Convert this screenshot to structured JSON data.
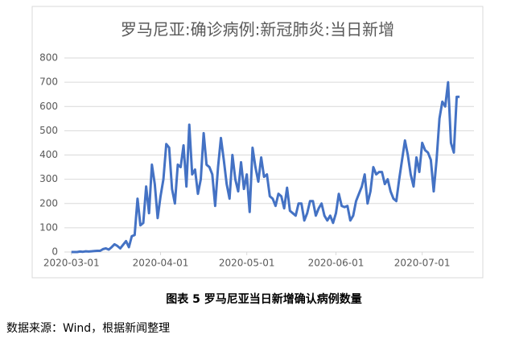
{
  "chart_data": {
    "type": "line",
    "title": "罗马尼亚:确诊病例:新冠肺炎:当日新增",
    "caption": "图表 5 罗马尼亚当日新增确认病例数量",
    "source": "数据来源：Wind，根据新闻整理",
    "x": [
      "2020-03-01",
      "2020-03-02",
      "2020-03-03",
      "2020-03-04",
      "2020-03-05",
      "2020-03-06",
      "2020-03-07",
      "2020-03-08",
      "2020-03-09",
      "2020-03-10",
      "2020-03-11",
      "2020-03-12",
      "2020-03-13",
      "2020-03-14",
      "2020-03-15",
      "2020-03-16",
      "2020-03-17",
      "2020-03-18",
      "2020-03-19",
      "2020-03-20",
      "2020-03-21",
      "2020-03-22",
      "2020-03-23",
      "2020-03-24",
      "2020-03-25",
      "2020-03-26",
      "2020-03-27",
      "2020-03-28",
      "2020-03-29",
      "2020-03-30",
      "2020-03-31",
      "2020-04-01",
      "2020-04-02",
      "2020-04-03",
      "2020-04-04",
      "2020-04-05",
      "2020-04-06",
      "2020-04-07",
      "2020-04-08",
      "2020-04-09",
      "2020-04-10",
      "2020-04-11",
      "2020-04-12",
      "2020-04-13",
      "2020-04-14",
      "2020-04-15",
      "2020-04-16",
      "2020-04-17",
      "2020-04-18",
      "2020-04-19",
      "2020-04-20",
      "2020-04-21",
      "2020-04-22",
      "2020-04-23",
      "2020-04-24",
      "2020-04-25",
      "2020-04-26",
      "2020-04-27",
      "2020-04-28",
      "2020-04-29",
      "2020-04-30",
      "2020-05-01",
      "2020-05-02",
      "2020-05-03",
      "2020-05-04",
      "2020-05-05",
      "2020-05-06",
      "2020-05-07",
      "2020-05-08",
      "2020-05-09",
      "2020-05-10",
      "2020-05-11",
      "2020-05-12",
      "2020-05-13",
      "2020-05-14",
      "2020-05-15",
      "2020-05-16",
      "2020-05-17",
      "2020-05-18",
      "2020-05-19",
      "2020-05-20",
      "2020-05-21",
      "2020-05-22",
      "2020-05-23",
      "2020-05-24",
      "2020-05-25",
      "2020-05-26",
      "2020-05-27",
      "2020-05-28",
      "2020-05-29",
      "2020-05-30",
      "2020-05-31",
      "2020-06-01",
      "2020-06-02",
      "2020-06-03",
      "2020-06-04",
      "2020-06-05",
      "2020-06-06",
      "2020-06-07",
      "2020-06-08",
      "2020-06-09",
      "2020-06-10",
      "2020-06-11",
      "2020-06-12",
      "2020-06-13",
      "2020-06-14",
      "2020-06-15",
      "2020-06-16",
      "2020-06-17",
      "2020-06-18",
      "2020-06-19",
      "2020-06-20",
      "2020-06-21",
      "2020-06-22",
      "2020-06-23",
      "2020-06-24",
      "2020-06-25",
      "2020-06-26",
      "2020-06-27",
      "2020-06-28",
      "2020-06-29",
      "2020-06-30",
      "2020-07-01",
      "2020-07-02",
      "2020-07-03",
      "2020-07-04",
      "2020-07-05",
      "2020-07-06",
      "2020-07-07",
      "2020-07-08",
      "2020-07-09",
      "2020-07-10",
      "2020-07-11",
      "2020-07-12",
      "2020-07-13",
      "2020-07-14"
    ],
    "series": [
      {
        "color": "#4472c4",
        "values": [
          0,
          0,
          0,
          2,
          1,
          3,
          2,
          3,
          4,
          5,
          5,
          12,
          15,
          10,
          20,
          32,
          25,
          15,
          30,
          45,
          20,
          65,
          70,
          220,
          110,
          120,
          270,
          160,
          360,
          280,
          140,
          230,
          300,
          445,
          430,
          260,
          200,
          360,
          350,
          440,
          270,
          525,
          320,
          340,
          240,
          300,
          490,
          360,
          350,
          320,
          190,
          350,
          470,
          380,
          280,
          220,
          400,
          300,
          250,
          370,
          260,
          320,
          165,
          430,
          350,
          290,
          390,
          310,
          320,
          230,
          220,
          190,
          240,
          230,
          180,
          265,
          170,
          160,
          150,
          200,
          200,
          130,
          160,
          210,
          210,
          150,
          180,
          200,
          150,
          130,
          150,
          120,
          160,
          240,
          190,
          185,
          190,
          130,
          150,
          210,
          240,
          270,
          320,
          200,
          250,
          350,
          320,
          330,
          330,
          280,
          300,
          250,
          220,
          210,
          300,
          380,
          460,
          400,
          320,
          270,
          390,
          330,
          450,
          420,
          410,
          380,
          250,
          380,
          550,
          620,
          600,
          700,
          450,
          410,
          640,
          640
        ]
      }
    ],
    "xlim": [
      "2020-02-27",
      "2020-07-19"
    ],
    "xticks": [
      "2020-03-01",
      "2020-04-01",
      "2020-05-01",
      "2020-06-01",
      "2020-07-01"
    ],
    "ylim": [
      0,
      800
    ],
    "yticks": [
      0,
      100,
      200,
      300,
      400,
      500,
      600,
      700,
      800
    ],
    "grid": true
  }
}
